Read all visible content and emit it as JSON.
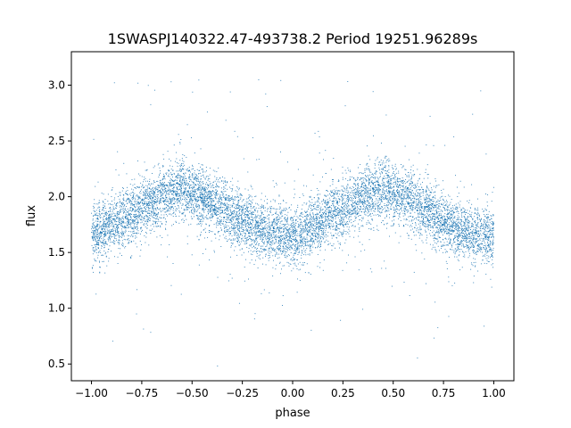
{
  "chart_data": {
    "type": "scatter",
    "title": "1SWASPJ140322.47-493738.2 Period 19251.96289s",
    "xlabel": "phase",
    "ylabel": "flux",
    "xlim": [
      -1.1,
      1.1
    ],
    "ylim": [
      0.35,
      3.3
    ],
    "x_ticks": [
      -1.0,
      -0.75,
      -0.5,
      -0.25,
      0.0,
      0.25,
      0.5,
      0.75,
      1.0
    ],
    "x_tick_labels": [
      "−1.00",
      "−0.75",
      "−0.50",
      "−0.25",
      "0.00",
      "0.25",
      "0.50",
      "0.75",
      "1.00"
    ],
    "y_ticks": [
      0.5,
      1.0,
      1.5,
      2.0,
      2.5,
      3.0
    ],
    "y_tick_labels": [
      "0.5",
      "1.0",
      "1.5",
      "2.0",
      "2.5",
      "3.0"
    ],
    "grid": false,
    "legend": "none",
    "marker_color": "#1f77b4",
    "series": [
      {
        "phase_range": [
          -1.0,
          1.0
        ],
        "trend_points": [
          {
            "x": -1.0,
            "y": 1.65
          },
          {
            "x": -0.875,
            "y": 1.77
          },
          {
            "x": -0.75,
            "y": 1.9
          },
          {
            "x": -0.625,
            "y": 2.03
          },
          {
            "x": -0.55,
            "y": 2.07
          },
          {
            "x": -0.45,
            "y": 2.0
          },
          {
            "x": -0.375,
            "y": 1.92
          },
          {
            "x": -0.25,
            "y": 1.78
          },
          {
            "x": -0.125,
            "y": 1.68
          },
          {
            "x": 0.0,
            "y": 1.63
          },
          {
            "x": 0.125,
            "y": 1.77
          },
          {
            "x": 0.25,
            "y": 1.9
          },
          {
            "x": 0.375,
            "y": 2.03
          },
          {
            "x": 0.45,
            "y": 2.07
          },
          {
            "x": 0.55,
            "y": 2.0
          },
          {
            "x": 0.625,
            "y": 1.92
          },
          {
            "x": 0.75,
            "y": 1.78
          },
          {
            "x": 0.875,
            "y": 1.68
          },
          {
            "x": 1.0,
            "y": 1.63
          }
        ],
        "scatter_spread": 0.13,
        "outlier_range": [
          0.48,
          3.05
        ]
      }
    ]
  }
}
